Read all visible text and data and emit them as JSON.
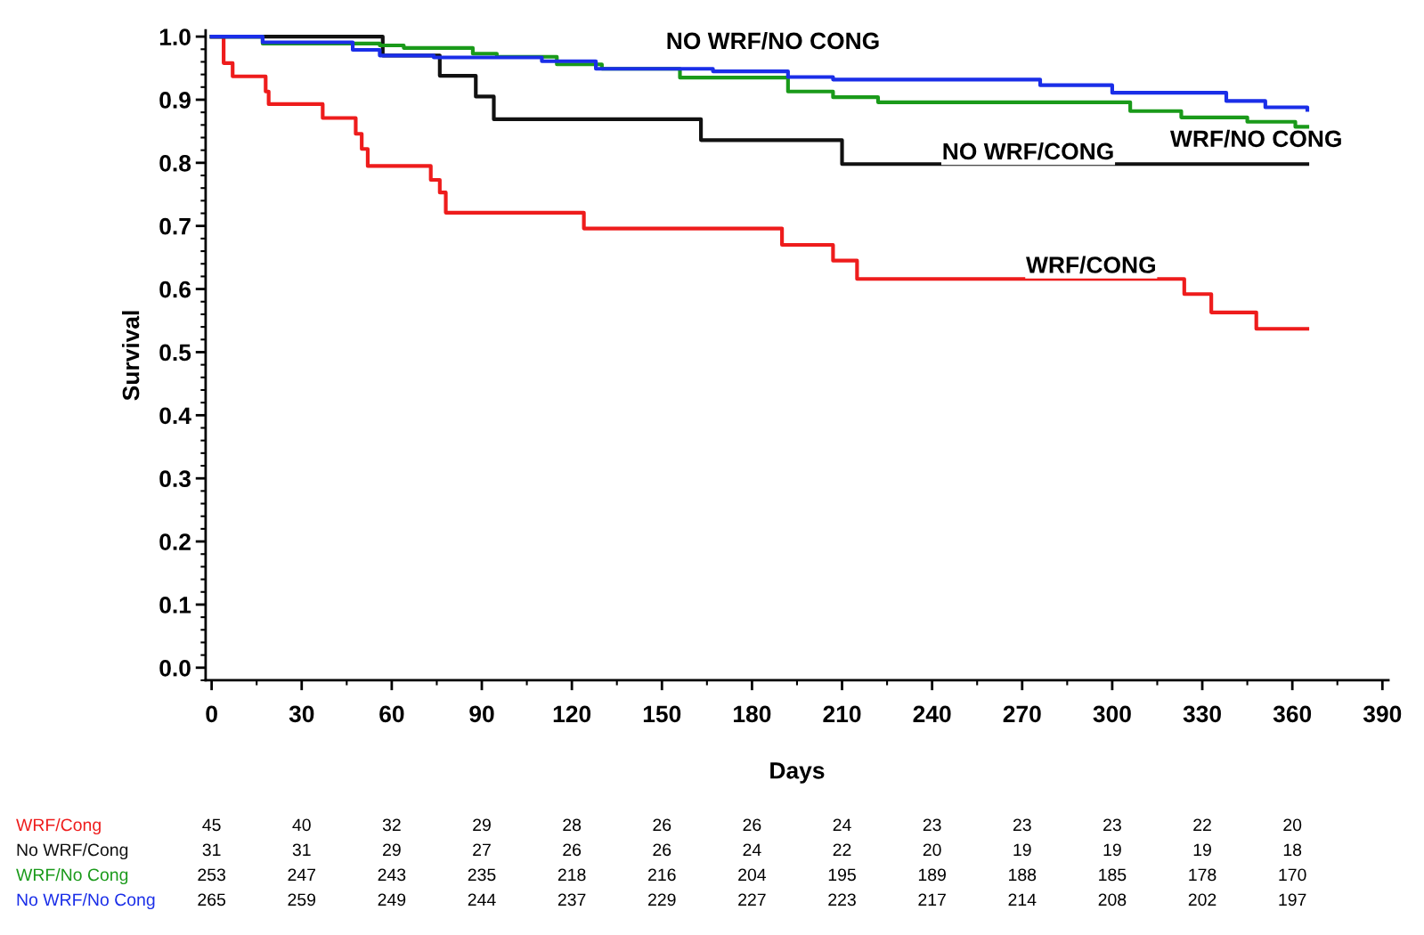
{
  "chart_data": {
    "type": "step",
    "xlabel": "Days",
    "ylabel": "Survival",
    "xlim": [
      -2,
      392
    ],
    "ylim": [
      -0.02,
      1.01
    ],
    "xticks": [
      0,
      30,
      60,
      90,
      120,
      150,
      180,
      210,
      240,
      270,
      300,
      330,
      360,
      390
    ],
    "yticks": [
      {
        "value": 0,
        "label": "0.0"
      },
      0.1,
      0.2,
      0.3,
      0.4,
      0.5,
      0.6,
      0.7,
      0.8,
      0.9,
      {
        "value": 1,
        "label": "1.0"
      }
    ],
    "grid": false,
    "legend": false,
    "marker": "none",
    "line_style": "solid",
    "series": [
      {
        "name": "WRF/CONG",
        "color": "#ee1c1c",
        "x": [
          0,
          4,
          7,
          18,
          19,
          37,
          48,
          50,
          52,
          73,
          76,
          78,
          124,
          190,
          207,
          215,
          324,
          333,
          348,
          365
        ],
        "values": [
          1.0,
          0.958,
          0.937,
          0.913,
          0.893,
          0.871,
          0.846,
          0.822,
          0.795,
          0.773,
          0.753,
          0.721,
          0.696,
          0.67,
          0.645,
          0.616,
          0.592,
          0.563,
          0.537,
          0.537
        ]
      },
      {
        "name": "NO WRF/CONG",
        "color": "#111111",
        "x": [
          0,
          57,
          76,
          88,
          94,
          163,
          210,
          365
        ],
        "values": [
          1.0,
          0.97,
          0.938,
          0.905,
          0.869,
          0.836,
          0.798,
          0.798
        ]
      },
      {
        "name": "WRF/NO CONG",
        "color": "#1a9a1a",
        "x": [
          0,
          17,
          56,
          64,
          87,
          95,
          115,
          130,
          156,
          192,
          207,
          222,
          306,
          323,
          345,
          361,
          365
        ],
        "values": [
          1.0,
          0.989,
          0.986,
          0.982,
          0.973,
          0.968,
          0.956,
          0.949,
          0.935,
          0.913,
          0.904,
          0.896,
          0.882,
          0.872,
          0.865,
          0.857,
          0.857
        ]
      },
      {
        "name": "NO WRF/NO CONG",
        "color": "#1a2ee8",
        "x": [
          0,
          17,
          47,
          56,
          74,
          110,
          128,
          167,
          192,
          207,
          276,
          300,
          338,
          351,
          365
        ],
        "values": [
          1.0,
          0.991,
          0.979,
          0.97,
          0.967,
          0.961,
          0.949,
          0.945,
          0.936,
          0.932,
          0.923,
          0.911,
          0.898,
          0.888,
          0.884
        ]
      }
    ],
    "annotations": [
      "WRF/Cong",
      "45",
      "40",
      "32",
      "29",
      "28",
      "26",
      "26",
      "24",
      "23",
      "23",
      "23",
      "22",
      "20",
      "No WRF/Cong",
      "31",
      "31",
      "29",
      "27",
      "26",
      "26",
      "24",
      "22",
      "20",
      "19",
      "19",
      "19",
      "18",
      "WRF/No Cong",
      "253",
      "247",
      "243",
      "235",
      "218",
      "216",
      "204",
      "195",
      "189",
      "188",
      "185",
      "178",
      "170",
      "No WRF/No Cong",
      "265",
      "259",
      "249",
      "244",
      "237",
      "229",
      "227",
      "223",
      "217",
      "214",
      "208",
      "202",
      "197"
    ]
  }
}
